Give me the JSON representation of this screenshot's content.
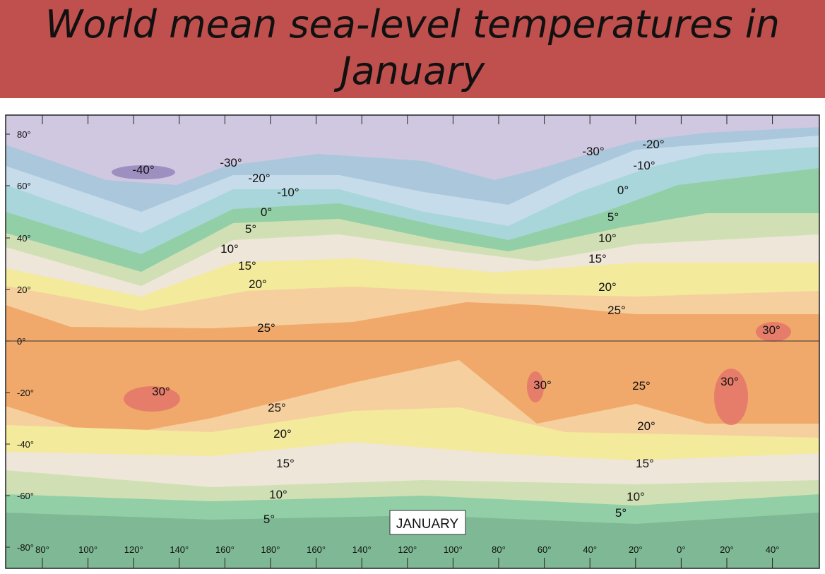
{
  "title": "World mean sea-level temperatures in January",
  "map": {
    "month_label": "JANUARY",
    "latitude_labels": [
      "80°",
      "60°",
      "40°",
      "20°",
      "0°",
      "-20°",
      "-40°",
      "-60°",
      "-80°"
    ],
    "longitude_labels": [
      "80°",
      "100°",
      "120°",
      "140°",
      "160°",
      "180°",
      "160°",
      "140°",
      "120°",
      "100°",
      "80°",
      "60°",
      "40°",
      "20°",
      "0°",
      "20°",
      "40°"
    ],
    "isotherm_labels": [
      "-40°",
      "-30°",
      "-20°",
      "-10°",
      "0°",
      "5°",
      "10°",
      "15°",
      "20°",
      "25°",
      "-30°",
      "-20°",
      "-10°",
      "0°",
      "5°",
      "10°",
      "15°",
      "20°",
      "25°",
      "30°",
      "30°",
      "30°",
      "30°",
      "25°",
      "20°",
      "15°",
      "10°",
      "5°",
      "25°",
      "20°",
      "15°",
      "10°",
      "5°"
    ],
    "colors": {
      "below_-30": "#cfc8e0",
      "below_-40": "#9486bb",
      "-30_to_-20": "#aac7dc",
      "-20_to_-10": "#c6dceb",
      "-10_to_0": "#a9d6da",
      "0_to_5": "#92cfa6",
      "5_to_10": "#d0e0b4",
      "10_to_15": "#eee6d8",
      "15_to_20": "#f3ea9c",
      "20_to_25": "#f6cf9e",
      "25_to_30": "#f0a96a",
      "above_30": "#e4756a",
      "title_bar": "#c0504d"
    }
  }
}
